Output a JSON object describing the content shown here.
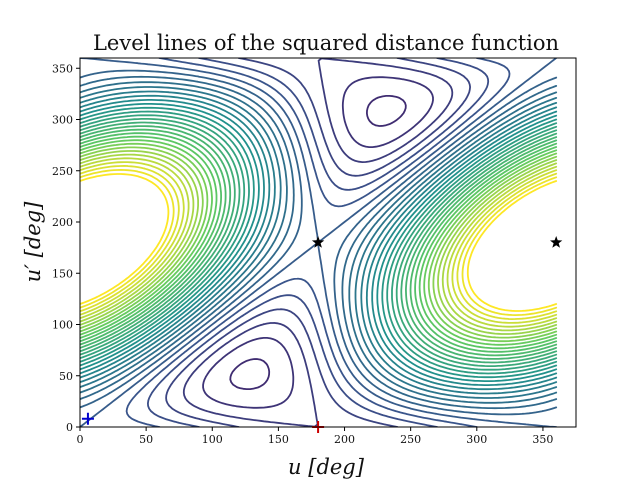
{
  "chart_data": {
    "type": "contour",
    "title": "Level lines of the squared distance function",
    "xlabel": "u [deg]",
    "ylabel": "u′ [deg]",
    "xlim": [
      0,
      375
    ],
    "ylim": [
      0,
      360
    ],
    "x_ticks": [
      0,
      50,
      100,
      150,
      200,
      250,
      300,
      350
    ],
    "y_ticks": [
      0,
      50,
      100,
      150,
      200,
      250,
      300,
      350
    ],
    "colormap": [
      "#440154",
      "#3b528b",
      "#21918c",
      "#5ec962",
      "#fde725"
    ],
    "levels": [
      0.15,
      0.3,
      0.45,
      0.6,
      0.75,
      0.9,
      1.05,
      1.2,
      1.35,
      1.5,
      1.65,
      1.8,
      1.95,
      2.1,
      2.25,
      2.4,
      2.55,
      2.7,
      2.85,
      3.0,
      3.15,
      3.3,
      3.45,
      3.6,
      3.75,
      3.9,
      4.05,
      4.2,
      4.35,
      4.5,
      4.65,
      4.8,
      4.95,
      5.1,
      5.25,
      5.4,
      5.55,
      5.7,
      5.85
    ],
    "markers": [
      {
        "name": "saddle-1",
        "symbol": "star",
        "color": "#000000",
        "x": 180,
        "y": 180
      },
      {
        "name": "saddle-2",
        "symbol": "star",
        "color": "#000000",
        "x": 360,
        "y": 180
      },
      {
        "name": "min-point",
        "symbol": "plus",
        "color": "#0000cc",
        "x": 6,
        "y": 8
      },
      {
        "name": "max-point",
        "symbol": "plus",
        "color": "#cc0000",
        "x": 180,
        "y": 0
      }
    ]
  }
}
